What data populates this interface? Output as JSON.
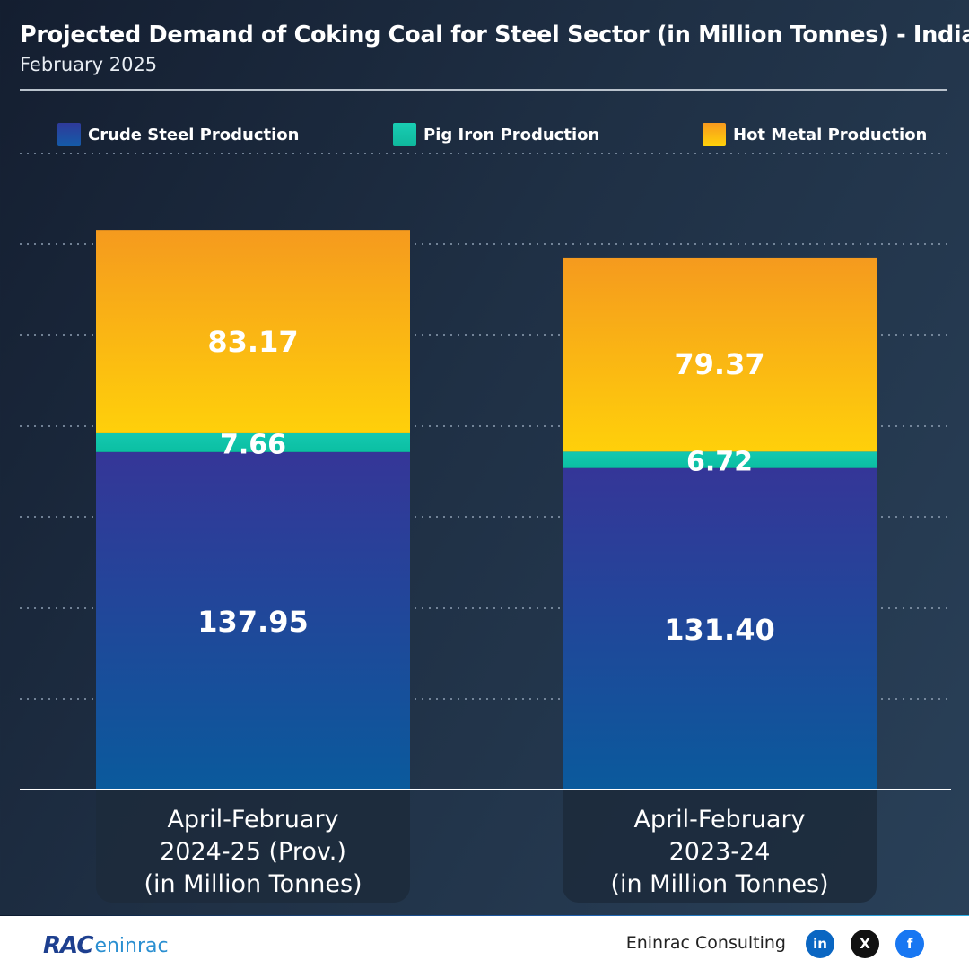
{
  "header": {
    "title": "Projected Demand of Coking Coal for Steel Sector (in Million Tonnes) - India",
    "subtitle": "February 2025"
  },
  "legend": [
    {
      "label": "Crude Steel Production",
      "color": "#2f3a9a"
    },
    {
      "label": "Pig Iron Production",
      "color": "#14c4a8"
    },
    {
      "label": "Hot Metal Production",
      "color": "#f7a21b"
    }
  ],
  "chart_data": {
    "type": "bar",
    "stacked": true,
    "categories": [
      [
        "April-February",
        "2024-25 (Prov.)",
        "(in Million Tonnes)"
      ],
      [
        "April-February",
        "2023-24",
        "(in Million Tonnes)"
      ]
    ],
    "series": [
      {
        "name": "Crude Steel Production",
        "values": [
          137.95,
          131.4
        ],
        "labels": [
          "137.95",
          "131.40"
        ]
      },
      {
        "name": "Pig Iron Production",
        "values": [
          7.66,
          6.72
        ],
        "labels": [
          "7.66",
          "6.72"
        ]
      },
      {
        "name": "Hot Metal Production",
        "values": [
          83.17,
          79.37
        ],
        "labels": [
          "83.17",
          "79.37"
        ]
      }
    ],
    "ylim": [
      0,
      260
    ],
    "grid": true,
    "legend_position": "top"
  },
  "footer": {
    "logo_text": "RAC",
    "logo_name": "eninrac",
    "company": "Eninrac Consulting",
    "social": [
      {
        "icon": "linkedin-icon",
        "glyph": "in",
        "color": "#0a66c2"
      },
      {
        "icon": "x-icon",
        "glyph": "X",
        "color": "#111111"
      },
      {
        "icon": "facebook-icon",
        "glyph": "f",
        "color": "#1877f2"
      }
    ]
  }
}
